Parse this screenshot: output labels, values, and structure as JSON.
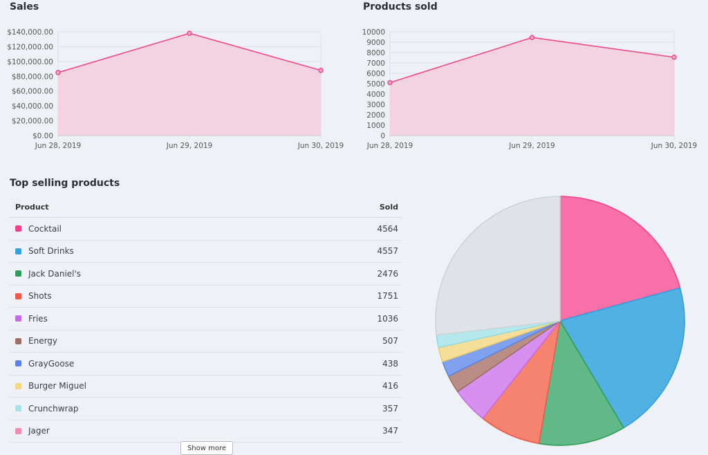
{
  "sales": {
    "title": "Sales",
    "chart_data": {
      "type": "area",
      "x": [
        "Jun 28, 2019",
        "Jun 29, 2019",
        "Jun 30, 2019"
      ],
      "values": [
        85000,
        138000,
        88000
      ],
      "ylim": [
        0,
        140000
      ],
      "yticks": [
        "$140,000.00",
        "$120,000.00",
        "$100,000.00",
        "$80,000.00",
        "$60,000.00",
        "$40,000.00",
        "$20,000.00",
        "$0.00"
      ],
      "color": "#f0468c",
      "fill": "#f4cfdf"
    }
  },
  "products_sold": {
    "title": "Products sold",
    "chart_data": {
      "type": "area",
      "x": [
        "Jun 28, 2019",
        "Jun 29, 2019",
        "Jun 30, 2019"
      ],
      "values": [
        5100,
        9450,
        7550
      ],
      "ylim": [
        0,
        10000
      ],
      "yticks": [
        "10000",
        "9000",
        "8000",
        "7000",
        "6000",
        "5000",
        "4000",
        "3000",
        "2000",
        "1000",
        "0"
      ],
      "color": "#f0468c",
      "fill": "#f4cfdf"
    }
  },
  "top_selling": {
    "title": "Top selling products",
    "col_product": "Product",
    "col_sold": "Sold",
    "rows": [
      {
        "name": "Cocktail",
        "sold": "4564",
        "color": "#f43f8a"
      },
      {
        "name": "Soft Drinks",
        "sold": "4557",
        "color": "#36a2e0"
      },
      {
        "name": "Jack Daniel's",
        "sold": "2476",
        "color": "#2e9e5a"
      },
      {
        "name": "Shots",
        "sold": "1751",
        "color": "#f4574a"
      },
      {
        "name": "Fries",
        "sold": "1036",
        "color": "#c86be6"
      },
      {
        "name": "Energy",
        "sold": "507",
        "color": "#a06d62"
      },
      {
        "name": "GrayGoose",
        "sold": "438",
        "color": "#5b84e6"
      },
      {
        "name": "Burger Miguel",
        "sold": "416",
        "color": "#f4d77e"
      },
      {
        "name": "Crunchwrap",
        "sold": "357",
        "color": "#a6e4ea"
      },
      {
        "name": "Jager",
        "sold": "347",
        "color": "#f38cb0"
      }
    ],
    "show_more": "Show more"
  },
  "pie": {
    "chart_data": {
      "type": "pie",
      "slices": [
        {
          "value": 4564,
          "fill": "#f870a8",
          "stroke": "#f43f8a"
        },
        {
          "value": 4557,
          "fill": "#52b1e3",
          "stroke": "#2f9ee0"
        },
        {
          "value": 2476,
          "fill": "#60b986",
          "stroke": "#2e9e5a"
        },
        {
          "value": 1751,
          "fill": "#f6836f",
          "stroke": "#f4574a"
        },
        {
          "value": 1036,
          "fill": "#d78ff0",
          "stroke": "#c86be6"
        },
        {
          "value": 507,
          "fill": "#b98e84",
          "stroke": "#a06d62"
        },
        {
          "value": 438,
          "fill": "#7fa1ef",
          "stroke": "#5b84e6"
        },
        {
          "value": 416,
          "fill": "#f5df98",
          "stroke": "#e8cc6a"
        },
        {
          "value": 357,
          "fill": "#b5e8ed",
          "stroke": "#93dbe3"
        },
        {
          "value": 5900,
          "fill": "#dfe3e7",
          "stroke": "#cfd4d9"
        }
      ]
    }
  }
}
